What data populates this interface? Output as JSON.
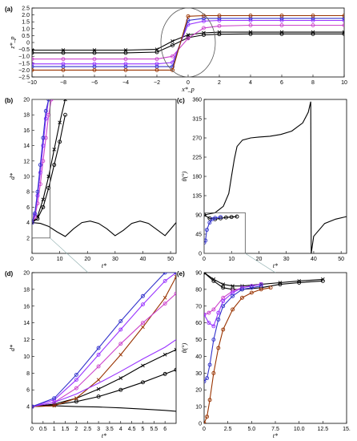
{
  "chart_data": [
    {
      "panel": "(a)",
      "type": "line",
      "xlabel": "x*_p",
      "ylabel": "z*_p",
      "xlim": [
        -10,
        10
      ],
      "ylim": [
        -2.5,
        2.5
      ],
      "xticks": [
        "−10",
        "−8",
        "−6",
        "−4",
        "−2",
        "0",
        "2",
        "4",
        "6",
        "8",
        "10"
      ],
      "yticks": [
        "2.5",
        "2.0",
        "1.5",
        "1.0",
        "0.5",
        "0",
        "−0.5",
        "−1.0",
        "−1.5",
        "−2.0",
        "−2.5"
      ],
      "series": [
        {
          "color": "#000000",
          "marker": "x",
          "x": [
            -10,
            -8,
            -6,
            -4,
            -2,
            -1,
            0,
            1,
            2,
            4,
            6,
            8,
            10
          ],
          "y": [
            -0.55,
            -0.55,
            -0.55,
            -0.55,
            -0.5,
            0.1,
            0.55,
            0.7,
            0.75,
            0.75,
            0.75,
            0.75,
            0.75
          ]
        },
        {
          "color": "#000000",
          "marker": "o",
          "x": [
            -10,
            -8,
            -6,
            -4,
            -2,
            -1,
            0,
            1,
            2,
            4,
            6,
            8,
            10
          ],
          "y": [
            -0.75,
            -0.75,
            -0.75,
            -0.75,
            -0.7,
            -0.2,
            0.35,
            0.55,
            0.6,
            0.62,
            0.62,
            0.62,
            0.62
          ]
        },
        {
          "color": "#cc44cc",
          "marker": "o",
          "x": [
            -10,
            -8,
            -6,
            -4,
            -2,
            -1,
            0,
            1,
            2,
            4,
            6,
            8,
            10
          ],
          "y": [
            -1.2,
            -1.2,
            -1.2,
            -1.2,
            -1.2,
            -1.0,
            0.3,
            1.05,
            1.2,
            1.25,
            1.25,
            1.25,
            1.25
          ]
        },
        {
          "color": "#9933ff",
          "marker": "o",
          "x": [
            -10,
            -8,
            -6,
            -4,
            -2,
            -1,
            0,
            1,
            2,
            4,
            6,
            8,
            10
          ],
          "y": [
            -1.55,
            -1.55,
            -1.55,
            -1.55,
            -1.55,
            -1.45,
            1.3,
            1.55,
            1.6,
            1.6,
            1.6,
            1.6,
            1.6
          ]
        },
        {
          "color": "#3333cc",
          "marker": "o",
          "x": [
            -10,
            -8,
            -6,
            -4,
            -2,
            -1,
            0,
            1,
            2,
            4,
            6,
            8,
            10
          ],
          "y": [
            -1.75,
            -1.75,
            -1.75,
            -1.75,
            -1.75,
            -1.75,
            1.6,
            1.75,
            1.75,
            1.75,
            1.75,
            1.75,
            1.75
          ]
        },
        {
          "color": "#993300",
          "marker": "o",
          "x": [
            -10,
            -8,
            -6,
            -4,
            -2,
            -1,
            0,
            1,
            2,
            4,
            6,
            8,
            10
          ],
          "y": [
            -2.0,
            -2.0,
            -2.0,
            -2.0,
            -2.0,
            -2.0,
            1.9,
            1.95,
            1.95,
            1.95,
            1.95,
            1.95,
            1.95
          ]
        }
      ]
    },
    {
      "panel": "(b)",
      "type": "line",
      "xlabel": "t*",
      "ylabel": "d*",
      "xlim": [
        0,
        52
      ],
      "ylim": [
        0,
        20
      ],
      "xticks": [
        "0",
        "10",
        "20",
        "30",
        "40",
        "50"
      ],
      "yticks": [
        "2",
        "4",
        "6",
        "8",
        "10",
        "12",
        "14",
        "16",
        "18",
        "20"
      ],
      "series": [
        {
          "color": "#000000",
          "marker": "none",
          "x": [
            0,
            3,
            6,
            9,
            12,
            15,
            18,
            21,
            24,
            27,
            30,
            33,
            36,
            39,
            42,
            45,
            48,
            52
          ],
          "y": [
            4,
            3.9,
            3.5,
            2.8,
            2.2,
            3.2,
            4.0,
            4.2,
            3.9,
            3.2,
            2.3,
            3.0,
            3.9,
            4.2,
            3.9,
            3.1,
            2.3,
            4.0
          ]
        },
        {
          "color": "#000000",
          "marker": "o",
          "x": [
            0,
            2,
            4,
            6,
            8,
            10,
            12
          ],
          "y": [
            4,
            4.5,
            6,
            8.5,
            11.5,
            14.5,
            18
          ]
        },
        {
          "color": "#000000",
          "marker": "x",
          "x": [
            0,
            2,
            4,
            6,
            8,
            10,
            12
          ],
          "y": [
            4,
            4.8,
            7,
            10,
            13.5,
            17,
            20
          ]
        },
        {
          "color": "#cc44cc",
          "marker": "o",
          "x": [
            0,
            1,
            2,
            3,
            4,
            5,
            6,
            7
          ],
          "y": [
            4,
            4.7,
            6.5,
            9,
            12,
            15,
            18,
            20
          ]
        },
        {
          "color": "#9933ff",
          "marker": "o",
          "x": [
            0,
            1,
            2,
            3,
            4,
            5,
            6
          ],
          "y": [
            4,
            5,
            7.5,
            10.5,
            14,
            17.5,
            20
          ]
        },
        {
          "color": "#3333cc",
          "marker": "o",
          "x": [
            0,
            1,
            2,
            3,
            4,
            5,
            6
          ],
          "y": [
            4,
            5.2,
            8,
            11.5,
            15,
            18.5,
            20
          ]
        }
      ]
    },
    {
      "panel": "(c)",
      "type": "line",
      "xlabel": "t*",
      "ylabel": "θ(°)",
      "xlim": [
        0,
        52
      ],
      "ylim": [
        0,
        360
      ],
      "xticks": [
        "0",
        "10",
        "20",
        "30",
        "40",
        "50"
      ],
      "yticks": [
        "0",
        "45",
        "90",
        "135",
        "180",
        "225",
        "270",
        "315",
        "360"
      ],
      "series": [
        {
          "color": "#000000",
          "marker": "none",
          "x": [
            0,
            4,
            7,
            9,
            10,
            11,
            12,
            14,
            17,
            20,
            24,
            28,
            32,
            36,
            38,
            38.9,
            39,
            39.1,
            40,
            44,
            48,
            52
          ],
          "y": [
            90,
            95,
            110,
            140,
            180,
            220,
            250,
            265,
            270,
            272,
            274,
            278,
            286,
            305,
            330,
            355,
            180,
            0,
            40,
            70,
            80,
            86
          ]
        },
        {
          "color": "#000000",
          "marker": "o",
          "x": [
            0,
            2,
            4,
            6,
            8,
            10,
            12
          ],
          "y": [
            90,
            82,
            80,
            82,
            84,
            85,
            86
          ]
        },
        {
          "color": "#3333cc",
          "marker": "o",
          "x": [
            0,
            0.5,
            1,
            2,
            3,
            4,
            6
          ],
          "y": [
            25,
            30,
            55,
            72,
            80,
            83,
            85
          ]
        }
      ]
    },
    {
      "panel": "(d)",
      "type": "line",
      "xlabel": "t*",
      "ylabel": "d*",
      "xlim": [
        0,
        6.5
      ],
      "ylim": [
        2,
        20
      ],
      "xticks": [
        "0",
        "0.5",
        "1",
        "1.5",
        "2",
        "2.5",
        "3",
        "3.5",
        "4",
        "4.5",
        "5",
        "5.5",
        "6"
      ],
      "yticks": [
        "4",
        "6",
        "8",
        "10",
        "12",
        "14",
        "16",
        "18",
        "20"
      ],
      "series": [
        {
          "color": "#000000",
          "marker": "none",
          "x": [
            0,
            1,
            2,
            3,
            4,
            5,
            6,
            6.5
          ],
          "y": [
            4,
            4.1,
            4.0,
            3.95,
            3.85,
            3.7,
            3.55,
            3.45
          ]
        },
        {
          "color": "#000000",
          "marker": "o",
          "x": [
            0,
            1,
            2,
            3,
            4,
            5,
            6,
            6.5
          ],
          "y": [
            4,
            4.2,
            4.6,
            5.2,
            6.0,
            6.9,
            7.9,
            8.4
          ]
        },
        {
          "color": "#000000",
          "marker": "x",
          "x": [
            0,
            1,
            2,
            3,
            4,
            5,
            6,
            6.5
          ],
          "y": [
            4,
            4.3,
            5.0,
            6.1,
            7.4,
            8.9,
            10.2,
            10.8
          ]
        },
        {
          "color": "#993300",
          "marker": "x",
          "x": [
            0,
            1,
            2,
            3,
            4,
            5,
            6,
            6.5
          ],
          "y": [
            4,
            4.1,
            5.0,
            7.2,
            10.2,
            13.5,
            17.0,
            19.5
          ]
        },
        {
          "color": "#cc44cc",
          "marker": "o",
          "x": [
            0,
            1,
            2,
            3,
            4,
            5,
            6,
            6.5
          ],
          "y": [
            4,
            4.5,
            6.2,
            8.8,
            11.5,
            14.0,
            16.3,
            17.5
          ]
        },
        {
          "color": "#9933ff",
          "marker": "none",
          "x": [
            0,
            1,
            2,
            3,
            4,
            5,
            6,
            6.5
          ],
          "y": [
            4,
            4.5,
            5.5,
            6.8,
            8.2,
            9.7,
            11.1,
            12.0
          ]
        },
        {
          "color": "#9933ff",
          "marker": "o",
          "x": [
            0,
            1,
            2,
            3,
            4,
            5,
            6,
            6.5
          ],
          "y": [
            4,
            4.8,
            7.2,
            10.2,
            13.2,
            16.2,
            19.0,
            20
          ]
        },
        {
          "color": "#3333cc",
          "marker": "o",
          "x": [
            0,
            1,
            2,
            3,
            4,
            5,
            6,
            6.5
          ],
          "y": [
            4,
            5.0,
            7.8,
            11.0,
            14.2,
            17.2,
            20,
            20
          ]
        }
      ]
    },
    {
      "panel": "(e)",
      "type": "line",
      "xlabel": "t*",
      "ylabel": "θ(°)",
      "xlim": [
        0,
        15
      ],
      "ylim": [
        0,
        90
      ],
      "xticks": [
        "0",
        "2.5",
        "5.0",
        "7.5",
        "10.0",
        "12.5",
        "15."
      ],
      "yticks": [
        "0",
        "10",
        "20",
        "30",
        "40",
        "50",
        "60",
        "70",
        "80",
        "90"
      ],
      "series": [
        {
          "color": "#000000",
          "marker": "o",
          "x": [
            0,
            1,
            2,
            3,
            4,
            6,
            8,
            10,
            12.5
          ],
          "y": [
            90,
            85,
            81,
            80,
            80,
            81,
            83,
            84,
            85
          ]
        },
        {
          "color": "#000000",
          "marker": "x",
          "x": [
            0,
            1,
            2,
            3,
            4,
            6,
            8,
            10,
            12.5
          ],
          "y": [
            90,
            86,
            83,
            82,
            82,
            83,
            84,
            85,
            86
          ]
        },
        {
          "color": "#cc44cc",
          "marker": "o",
          "x": [
            0,
            0.5,
            1,
            2,
            3,
            4,
            5,
            6
          ],
          "y": [
            65,
            66,
            68,
            75,
            79,
            81,
            82,
            83
          ]
        },
        {
          "color": "#9933ff",
          "marker": "o",
          "x": [
            0,
            0.5,
            1,
            1.5,
            2,
            3,
            4,
            5,
            6
          ],
          "y": [
            65,
            60,
            58,
            66,
            73,
            78,
            81,
            82,
            83
          ]
        },
        {
          "color": "#3333cc",
          "marker": "o",
          "x": [
            0,
            0.3,
            0.6,
            1,
            1.5,
            2,
            3,
            4,
            5,
            6
          ],
          "y": [
            25,
            27,
            35,
            50,
            62,
            70,
            76,
            80,
            81,
            82
          ]
        },
        {
          "color": "#993300",
          "marker": "o",
          "x": [
            0,
            0.3,
            0.6,
            1,
            1.5,
            2,
            3,
            4,
            5,
            6,
            7
          ],
          "y": [
            0,
            4,
            14,
            30,
            45,
            56,
            68,
            75,
            78,
            80,
            81
          ]
        }
      ]
    }
  ]
}
